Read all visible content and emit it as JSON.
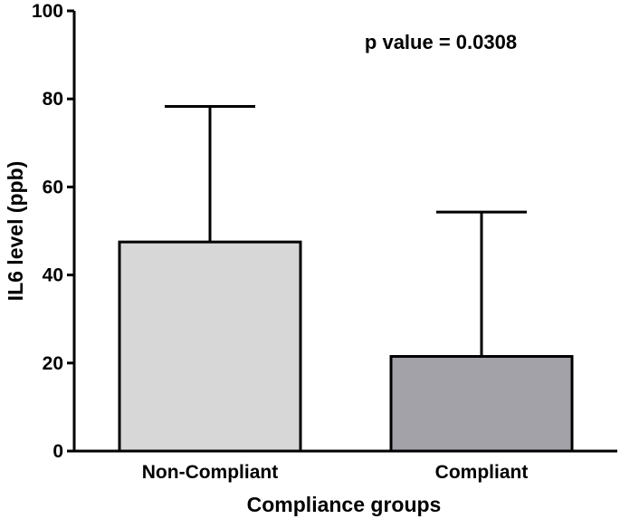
{
  "chart_data": {
    "type": "bar",
    "title": "",
    "categories": [
      "Non-Compliant",
      "Compliant"
    ],
    "values": [
      47.5,
      21.5
    ],
    "error_upper": [
      78.3,
      54.3
    ],
    "bar_colors": [
      "#d7d7d7",
      "#a3a2a8"
    ],
    "xlabel": "Compliance groups",
    "ylabel": "IL6 level (ppb)",
    "ylim": [
      0,
      100
    ],
    "yticks": [
      0,
      20,
      40,
      60,
      80,
      100
    ],
    "annotation": "p value = 0.0308"
  }
}
